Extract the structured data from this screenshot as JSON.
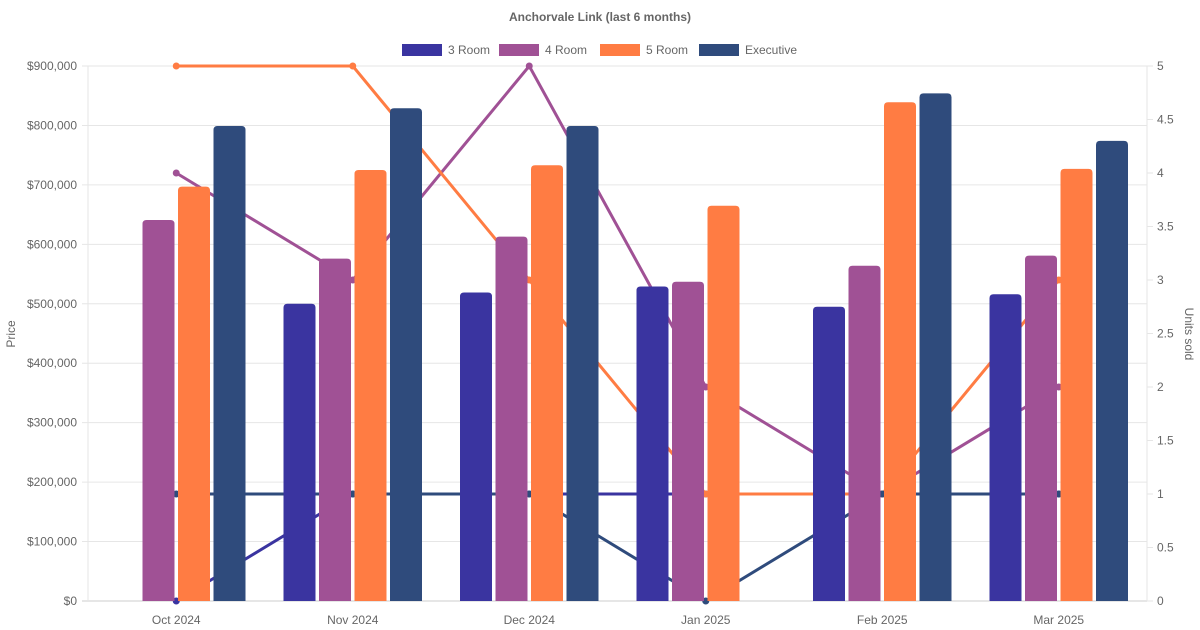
{
  "chart_data": {
    "type": "bar",
    "title": "Anchorvale Link (last 6 months)",
    "categories": [
      "Oct 2024",
      "Nov 2024",
      "Dec 2024",
      "Jan 2025",
      "Feb 2025",
      "Mar 2025"
    ],
    "ylabel": "Price",
    "y2label": "Units sold",
    "ylim": [
      0,
      900000
    ],
    "y2lim": [
      0,
      5
    ],
    "yticks": [
      "$0",
      "$100,000",
      "$200,000",
      "$300,000",
      "$400,000",
      "$500,000",
      "$600,000",
      "$700,000",
      "$800,000",
      "$900,000"
    ],
    "y2ticks": [
      "0",
      "0.5",
      "1",
      "1.5",
      "2",
      "2.5",
      "3",
      "3.5",
      "4",
      "4.5",
      "5"
    ],
    "grid": true,
    "legend_position": "top",
    "series": [
      {
        "name": "3 Room",
        "color": "#3a34a0",
        "price": [
          null,
          500000,
          519000,
          529000,
          495000,
          516000
        ],
        "units": [
          0,
          1,
          1,
          1,
          1,
          1
        ]
      },
      {
        "name": "4 Room",
        "color": "#a05195",
        "price": [
          641000,
          576000,
          613000,
          537000,
          564000,
          581000
        ],
        "units": [
          4,
          3,
          5,
          2,
          1,
          2
        ]
      },
      {
        "name": "5 Room",
        "color": "#ff7c43",
        "price": [
          697000,
          725000,
          733000,
          665000,
          839000,
          727000
        ],
        "units": [
          5,
          5,
          3,
          1,
          1,
          3
        ]
      },
      {
        "name": "Executive",
        "color": "#2f4b7c",
        "price": [
          799000,
          829000,
          799000,
          null,
          854000,
          774000
        ],
        "units": [
          1,
          1,
          1,
          0,
          1,
          1
        ]
      }
    ]
  }
}
